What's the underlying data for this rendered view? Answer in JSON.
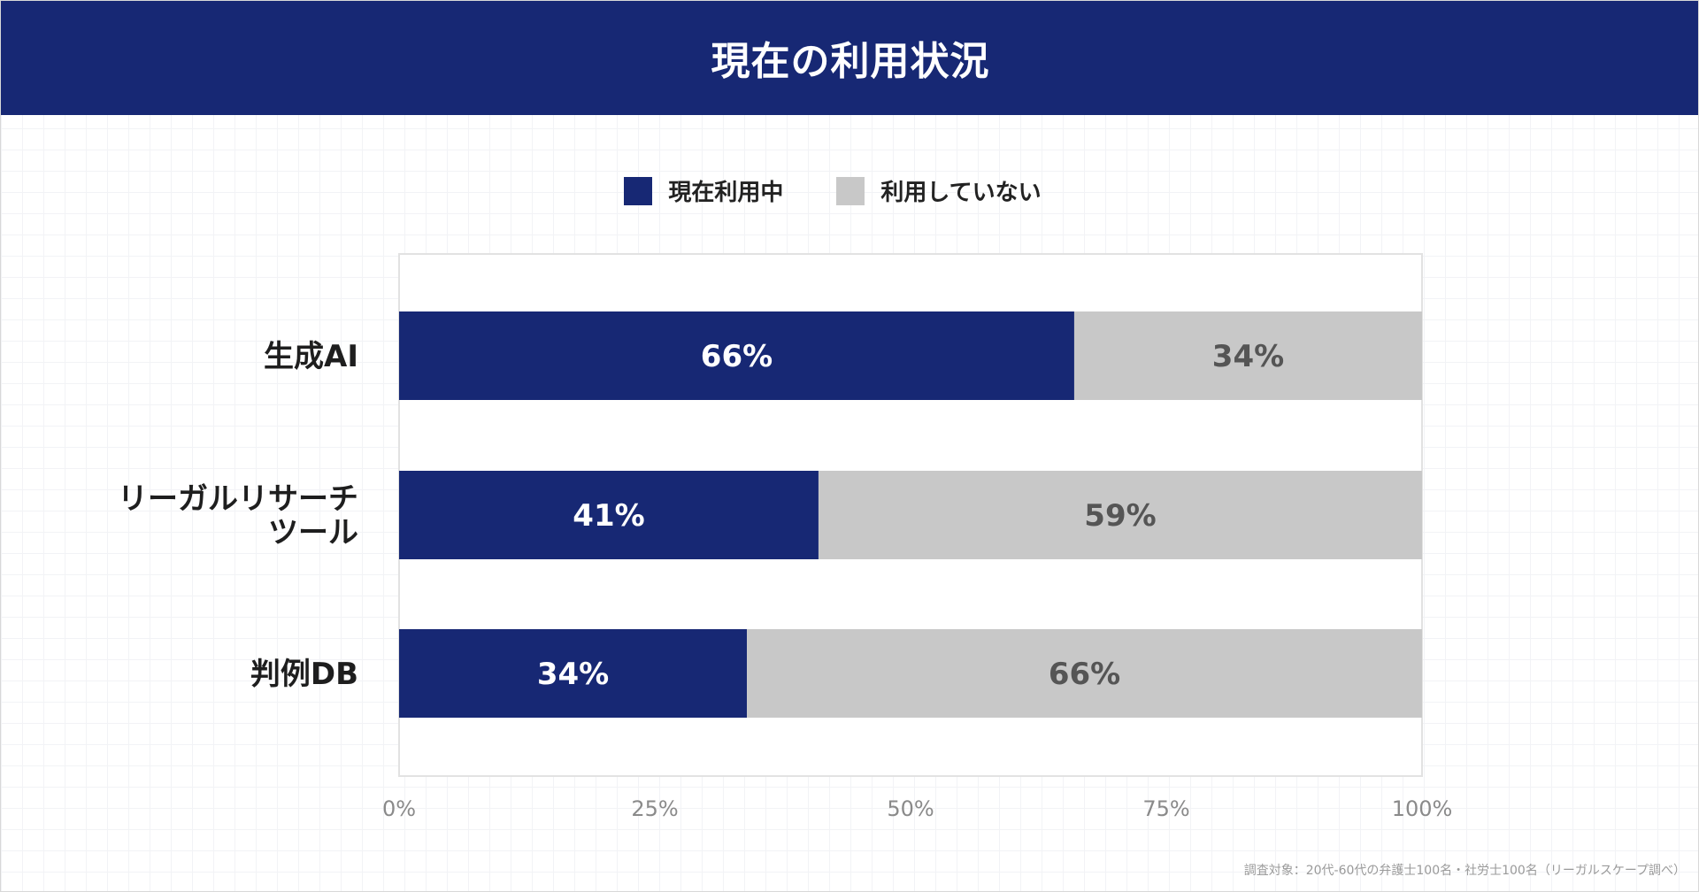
{
  "header": {
    "title": "現在の利用状況"
  },
  "colors": {
    "header_bg": "#172874",
    "used": "#172874",
    "not_used": "#c8c8c8",
    "used_label": "#ffffff",
    "not_used_label": "#555555"
  },
  "chart_data": {
    "type": "bar",
    "orientation": "horizontal",
    "stacked": true,
    "normalized": true,
    "title": "現在の利用状況",
    "categories": [
      "生成AI",
      "リーガルリサーチ\nツール",
      "判例DB"
    ],
    "series": [
      {
        "name": "現在利用中",
        "values": [
          66,
          41,
          34
        ],
        "labels": [
          "66%",
          "41%",
          "34%"
        ]
      },
      {
        "name": "利用していない",
        "values": [
          34,
          59,
          66
        ],
        "labels": [
          "34%",
          "59%",
          "66%"
        ]
      }
    ],
    "xlim": [
      0,
      100
    ],
    "xticks": [
      0,
      25,
      50,
      75,
      100
    ],
    "xtick_labels": [
      "0%",
      "25%",
      "50%",
      "75%",
      "100%"
    ],
    "xlabel": "",
    "ylabel": "",
    "grid": false,
    "legend_position": "top-center"
  },
  "footnote": "調査対象：20代-60代の弁護士100名・社労士100名（リーガルスケープ調べ）"
}
